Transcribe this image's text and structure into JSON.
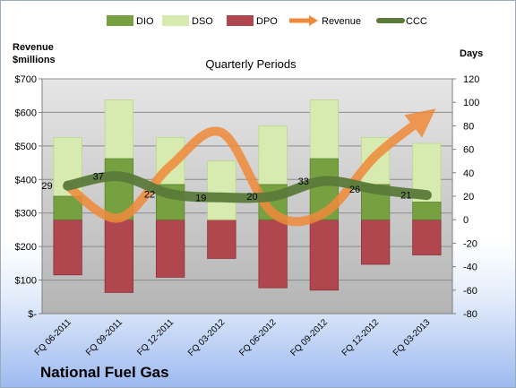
{
  "chart_data": {
    "type": "bar",
    "title": "Quarterly Periods",
    "company": "National Fuel Gas",
    "left_axis_label": "Revenue\n$millions",
    "right_axis_label": "Days",
    "left_ticks": [
      "$-",
      "$100",
      "$200",
      "$300",
      "$400",
      "$500",
      "$600",
      "$700"
    ],
    "left_ylim": [
      0,
      700
    ],
    "right_ticks": [
      "-80",
      "-60",
      "-40",
      "-20",
      "0",
      "20",
      "40",
      "60",
      "80",
      "100",
      "120"
    ],
    "right_ylim": [
      -80,
      120
    ],
    "categories": [
      "FQ 06-2011",
      "FQ 09-2011",
      "FQ 12-2011",
      "FQ 03-2012",
      "FQ 06-2012",
      "FQ 09-2012",
      "FQ 12-2012",
      "FQ 03-2013"
    ],
    "series": [
      {
        "name": "DIO",
        "axis": "right",
        "color": "#77a041",
        "values": [
          20,
          52,
          30,
          0,
          30,
          52,
          30,
          15
        ]
      },
      {
        "name": "DSO",
        "axis": "right",
        "color": "#d7ebb0",
        "values": [
          50,
          50,
          40,
          50,
          50,
          50,
          40,
          50
        ]
      },
      {
        "name": "DPO",
        "axis": "right",
        "color": "#b0474e",
        "values": [
          -47,
          -62,
          -49,
          -33,
          -58,
          -60,
          -38,
          -30
        ]
      },
      {
        "name": "Revenue",
        "axis": "left",
        "color": "#ef8a3a",
        "values": [
          380,
          285,
          440,
          540,
          300,
          300,
          470,
          590
        ]
      },
      {
        "name": "CCC",
        "axis": "right",
        "color": "#5b7a3a",
        "values": [
          29,
          37,
          22,
          19,
          20,
          33,
          26,
          21
        ]
      }
    ],
    "ccc_labels": [
      "29",
      "37",
      "22",
      "19",
      "20",
      "33",
      "26",
      "21"
    ],
    "grid": true,
    "legend_position": "top"
  }
}
